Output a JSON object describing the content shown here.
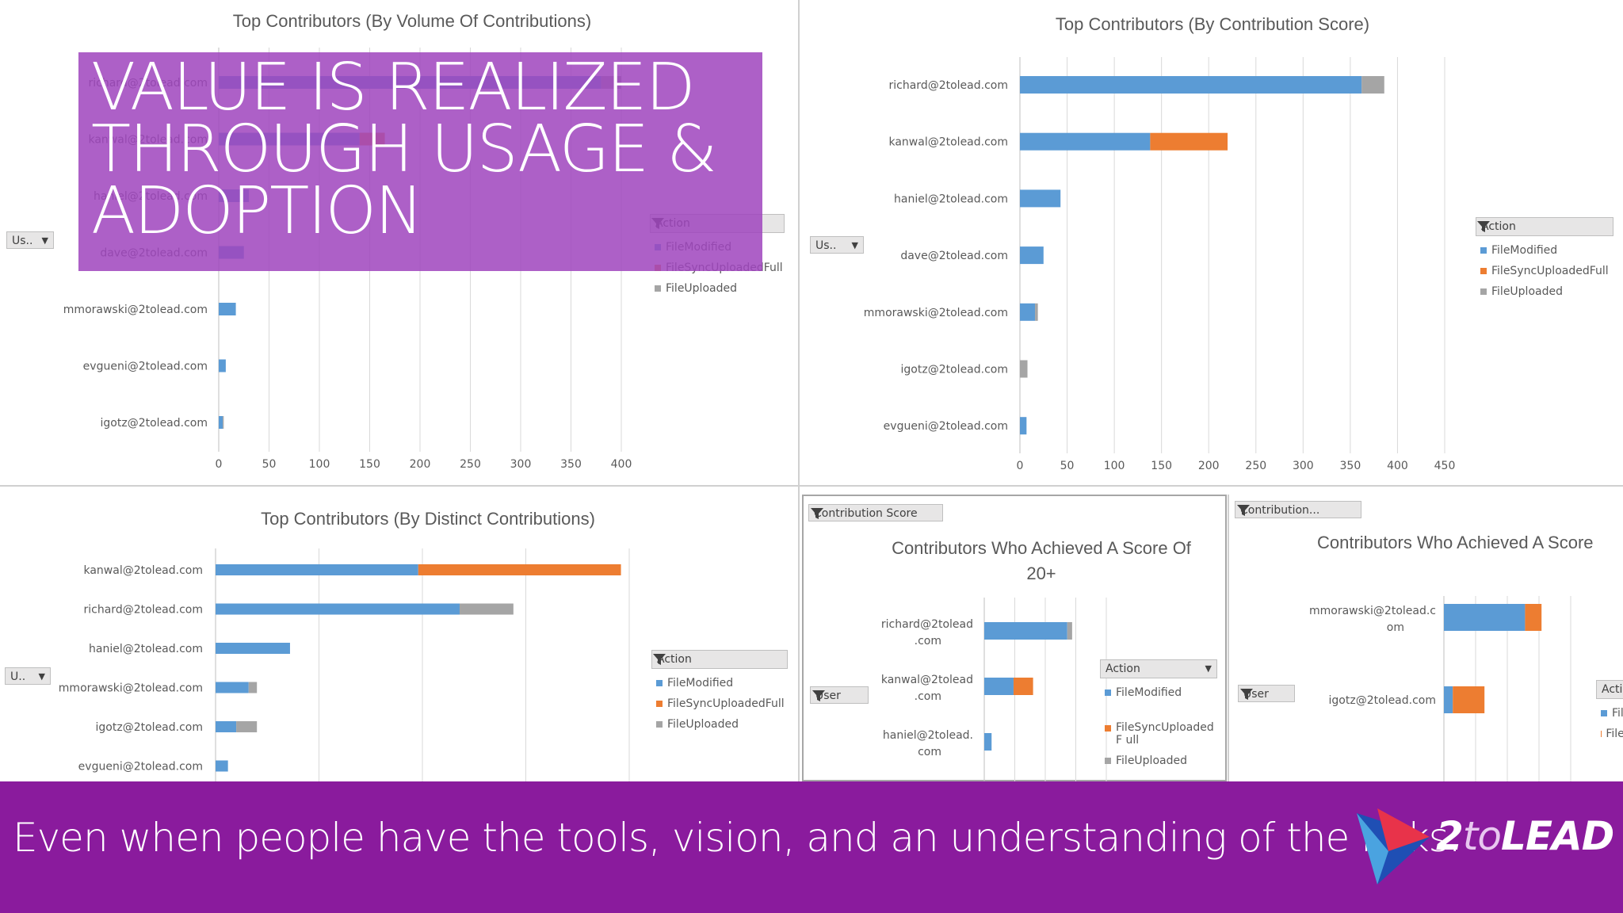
{
  "banner": {
    "title_lines": [
      "VALUE IS REALIZED",
      "THROUGH USAGE &",
      "ADOPTION"
    ]
  },
  "footer": {
    "text": "Even when people have the tools, vision, and an understanding of the risks.",
    "logo": {
      "two": "2",
      "to": "to",
      "lead": "LEAD"
    }
  },
  "colors": {
    "FileModified": "#5b9bd5",
    "FileSyncUploadedFull": "#ed7d31",
    "FileUploaded": "#a5a5a5"
  },
  "legend_title": "Action",
  "legend_items": [
    "FileModified",
    "FileSyncUploadedFull",
    "FileUploaded"
  ],
  "legend_items_wrapped": [
    "FileModified",
    "FileSyncUploadedF ull",
    "FileUploaded"
  ],
  "filters": {
    "user_short1": "Us..",
    "user_short2": "Us..",
    "user_short3": "U..",
    "user": "User",
    "contribution_score": "Contribution Score",
    "contribution_short": "Contribution..."
  },
  "chart_data": [
    {
      "type": "bar",
      "orientation": "horizontal",
      "stacked": true,
      "title": "Top Contributors (By Volume Of Contributions)",
      "categories": [
        "richard@2tolead.com",
        "kanwal@2tolead.com",
        "haniel@2tolead.com",
        "dave@2tolead.com",
        "mmorawski@2tolead.com",
        "evgueni@2tolead.com",
        "igotz@2tolead.com"
      ],
      "series": [
        {
          "name": "FileModified",
          "values": [
            380,
            140,
            30,
            25,
            17,
            7,
            4
          ]
        },
        {
          "name": "FileSyncUploadedFull",
          "values": [
            0,
            25,
            0,
            0,
            0,
            0,
            0
          ]
        },
        {
          "name": "FileUploaded",
          "values": [
            20,
            0,
            0,
            0,
            0,
            0,
            1
          ]
        }
      ],
      "xlim": [
        0,
        400
      ],
      "xticks": [
        "0",
        "50",
        "100",
        "150",
        "200",
        "250",
        "300",
        "350",
        "400"
      ],
      "legend": "right",
      "grid": true
    },
    {
      "type": "bar",
      "orientation": "horizontal",
      "stacked": true,
      "title": "Top Contributors (By Contribution Score)",
      "categories": [
        "richard@2tolead.com",
        "kanwal@2tolead.com",
        "haniel@2tolead.com",
        "dave@2tolead.com",
        "mmorawski@2tolead.com",
        "igotz@2tolead.com",
        "evgueni@2tolead.com"
      ],
      "series": [
        {
          "name": "FileModified",
          "values": [
            362,
            138,
            43,
            25,
            16,
            0,
            7
          ]
        },
        {
          "name": "FileSyncUploadedFull",
          "values": [
            0,
            82,
            0,
            0,
            0,
            0,
            0
          ]
        },
        {
          "name": "FileUploaded",
          "values": [
            24,
            0,
            0,
            0,
            3,
            8,
            0
          ]
        }
      ],
      "xlim": [
        0,
        450
      ],
      "xticks": [
        "0",
        "50",
        "100",
        "150",
        "200",
        "250",
        "300",
        "350",
        "400",
        "450"
      ],
      "legend": "right",
      "grid": true
    },
    {
      "type": "bar",
      "orientation": "horizontal",
      "stacked": true,
      "title": "Top Contributors (By Distinct Contributions)",
      "categories": [
        "kanwal@2tolead.com",
        "richard@2tolead.com",
        "haniel@2tolead.com",
        "mmorawski@2tolead.com",
        "igotz@2tolead.com",
        "evgueni@2tolead.com"
      ],
      "series": [
        {
          "name": "FileModified",
          "values": [
            49,
            59,
            18,
            8,
            5,
            3
          ]
        },
        {
          "name": "FileSyncUploadedFull",
          "values": [
            49,
            0,
            0,
            0,
            0,
            0
          ]
        },
        {
          "name": "FileUploaded",
          "values": [
            0,
            13,
            0,
            2,
            5,
            0
          ]
        }
      ],
      "xlim": [
        0,
        100
      ],
      "legend": "right",
      "grid": true
    },
    {
      "type": "bar",
      "orientation": "horizontal",
      "stacked": true,
      "title": "Contributors Who Achieved A Score Of 20+",
      "categories": [
        "richard@2tolead .com",
        "kanwal@2tolead .com",
        "haniel@2tolead. com"
      ],
      "series": [
        {
          "name": "FileModified",
          "values": [
            68,
            24,
            6
          ]
        },
        {
          "name": "FileSyncUploadedFull",
          "values": [
            0,
            16,
            0
          ]
        },
        {
          "name": "FileUploaded",
          "values": [
            4,
            0,
            0
          ]
        }
      ],
      "xlim": [
        0,
        100
      ],
      "legend": "right",
      "grid": true
    },
    {
      "type": "bar",
      "orientation": "horizontal",
      "stacked": true,
      "title": "Contributors Who Achieved A Score",
      "categories": [
        "mmorawski@2tolead.c om",
        "igotz@2tolead.com"
      ],
      "series": [
        {
          "name": "FileModified",
          "values": [
            128,
            14
          ]
        },
        {
          "name": "FileSyncUploadedFull",
          "values": [
            26,
            50
          ]
        },
        {
          "name": "FileUploaded",
          "values": [
            0,
            0
          ]
        }
      ],
      "xlim": [
        0,
        200
      ],
      "legend": "right",
      "grid": true
    }
  ]
}
